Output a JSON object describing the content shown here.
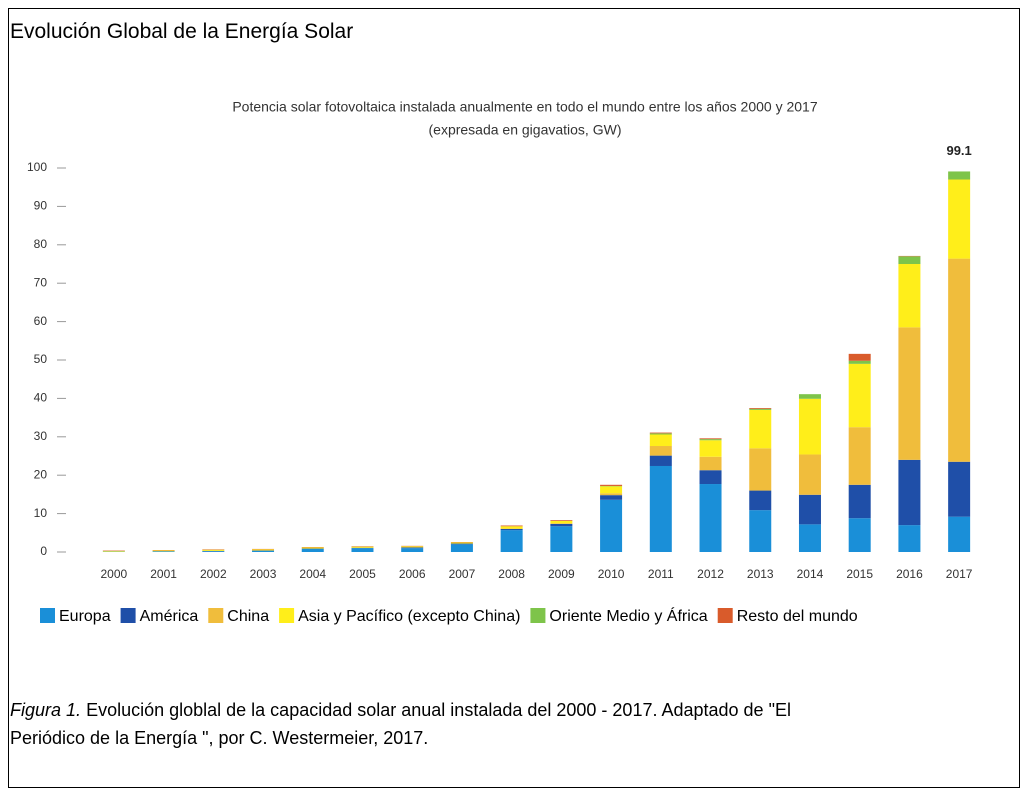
{
  "header": {
    "title": "Evolución Global de la Energía Solar"
  },
  "chart_data": {
    "type": "bar",
    "stacked": true,
    "title": [
      "Potencia solar fotovoltaica instalada anualmente en todo el mundo entre los años 2000 y 2017",
      "(expresada en gigavatios, GW)"
    ],
    "categories": [
      "2000",
      "2001",
      "2002",
      "2003",
      "2004",
      "2005",
      "2006",
      "2007",
      "2008",
      "2009",
      "2010",
      "2011",
      "2012",
      "2013",
      "2014",
      "2015",
      "2016",
      "2017"
    ],
    "series": [
      {
        "name": "Europa",
        "color": "#1a8fd8",
        "values": [
          0.1,
          0.2,
          0.2,
          0.3,
          0.8,
          1.0,
          1.0,
          2.0,
          5.7,
          6.7,
          13.6,
          22.4,
          17.7,
          10.9,
          7.2,
          8.8,
          7.0,
          9.2
        ]
      },
      {
        "name": "América",
        "color": "#1f4fa8",
        "values": [
          0,
          0,
          0.1,
          0.1,
          0.1,
          0.1,
          0.2,
          0.2,
          0.3,
          0.6,
          1.2,
          2.7,
          3.6,
          5.1,
          7.7,
          8.7,
          17.0,
          14.3
        ]
      },
      {
        "name": "China",
        "color": "#f0bd3c",
        "values": [
          0,
          0,
          0,
          0,
          0,
          0,
          0,
          0,
          0.1,
          0.2,
          0.5,
          2.5,
          3.5,
          11.0,
          10.5,
          15.0,
          34.5,
          52.9
        ]
      },
      {
        "name": "Asia y Pacífico (excepto China)",
        "color": "#ffee1a",
        "values": [
          0.2,
          0.2,
          0.3,
          0.3,
          0.3,
          0.3,
          0.3,
          0.3,
          0.6,
          0.6,
          1.8,
          3.0,
          4.3,
          10.0,
          14.5,
          16.5,
          16.5,
          20.6
        ]
      },
      {
        "name": "Oriente Medio y África",
        "color": "#7ec44a",
        "values": [
          0,
          0,
          0,
          0,
          0,
          0,
          0,
          0,
          0,
          0,
          0.1,
          0.3,
          0.3,
          0.3,
          1.2,
          0.8,
          2.0,
          2.1
        ]
      },
      {
        "name": "Resto del mundo",
        "color": "#d95b2b",
        "values": [
          0.1,
          0.1,
          0.1,
          0.1,
          0.1,
          0.1,
          0.1,
          0.1,
          0.2,
          0.2,
          0.3,
          0.2,
          0.2,
          0.2,
          0,
          1.8,
          0.1,
          0
        ]
      }
    ],
    "ylim": [
      0,
      100
    ],
    "yticks": [
      0,
      10,
      20,
      30,
      40,
      50,
      60,
      70,
      80,
      90,
      100
    ],
    "grid": false,
    "annotations": [
      {
        "category": "2017",
        "value": 99.1
      }
    ]
  },
  "caption": {
    "label": "Figura 1.",
    "text": "Evolución globlal de la capacidad solar anual instalada del 2000 - 2017. Adaptado de \"El Periódico de la Energía \", por C. Westermeier, 2017."
  }
}
